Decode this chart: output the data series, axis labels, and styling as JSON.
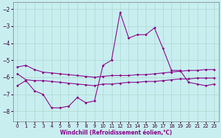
{
  "title": "",
  "xlabel": "Windchill (Refroidissement éolien,°C)",
  "ylabel": "",
  "bg_color": "#c8eef0",
  "grid_color": "#aad8cc",
  "line_color": "#880088",
  "xlim": [
    -0.5,
    23.5
  ],
  "ylim": [
    -8.6,
    -1.6
  ],
  "xticks": [
    0,
    1,
    2,
    3,
    4,
    5,
    6,
    7,
    8,
    9,
    10,
    11,
    12,
    13,
    14,
    15,
    16,
    17,
    18,
    19,
    20,
    21,
    22,
    23
  ],
  "yticks": [
    -8,
    -7,
    -6,
    -5,
    -4,
    -3,
    -2
  ],
  "line1_x": [
    0,
    1,
    2,
    3,
    4,
    5,
    6,
    7,
    8,
    9,
    10,
    11,
    12,
    13,
    14,
    15,
    16,
    17,
    18,
    19,
    20,
    21,
    22,
    23
  ],
  "line1_y": [
    -5.4,
    -5.3,
    -5.55,
    -5.7,
    -5.75,
    -5.8,
    -5.85,
    -5.9,
    -5.95,
    -6.0,
    -5.95,
    -5.9,
    -5.9,
    -5.9,
    -5.85,
    -5.85,
    -5.8,
    -5.75,
    -5.7,
    -5.65,
    -5.6,
    -5.6,
    -5.55,
    -5.55
  ],
  "line2_x": [
    0,
    1,
    2,
    3,
    4,
    5,
    6,
    7,
    8,
    9,
    10,
    11,
    12,
    13,
    14,
    15,
    16,
    17,
    18,
    19,
    20,
    21,
    22,
    23
  ],
  "line2_y": [
    -5.8,
    -6.15,
    -6.2,
    -6.2,
    -6.25,
    -6.3,
    -6.35,
    -6.4,
    -6.45,
    -6.5,
    -6.4,
    -6.4,
    -6.35,
    -6.3,
    -6.3,
    -6.25,
    -6.25,
    -6.2,
    -6.15,
    -6.1,
    -6.1,
    -6.05,
    -6.05,
    -6.05
  ],
  "line3_x": [
    0,
    1,
    2,
    3,
    4,
    5,
    6,
    7,
    8,
    9,
    10,
    11,
    12,
    13,
    14,
    15,
    16,
    17,
    18,
    19,
    20,
    21,
    22,
    23
  ],
  "line3_y": [
    -6.5,
    -6.2,
    -6.8,
    -7.0,
    -7.8,
    -7.8,
    -7.7,
    -7.2,
    -7.5,
    -7.4,
    -5.3,
    -5.0,
    -2.2,
    -3.7,
    -3.5,
    -3.5,
    -3.1,
    -4.3,
    -5.6,
    -5.6,
    -6.3,
    -6.4,
    -6.5,
    -6.4
  ]
}
